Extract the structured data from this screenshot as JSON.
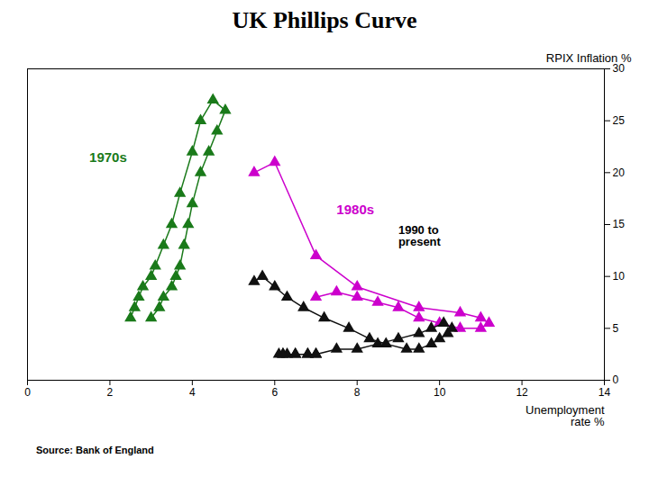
{
  "chart_data": {
    "type": "line",
    "title": "UK Phillips Curve",
    "xlabel": "Unemployment\nrate %",
    "ylabel": "RPIX Inflation %",
    "source": "Source: Bank of England",
    "xlim": [
      0,
      14
    ],
    "ylim": [
      0,
      30
    ],
    "xticks": [
      0,
      2,
      4,
      6,
      8,
      10,
      12,
      14
    ],
    "yticks": [
      0,
      5,
      10,
      15,
      20,
      25,
      30
    ],
    "grid": false,
    "marker": "triangle",
    "line_style": "solid",
    "series": [
      {
        "color": "#1a7a1a",
        "x": [
          2.5,
          2.6,
          2.7,
          2.8,
          3.0,
          3.1,
          3.3,
          3.5,
          3.7,
          4.0,
          4.2,
          4.5,
          4.8,
          4.6,
          4.4,
          4.2,
          4.0,
          3.9,
          3.8,
          3.7,
          3.6,
          3.5,
          3.3,
          3.2,
          3.0
        ],
        "values": [
          6,
          7,
          8,
          9,
          10,
          11,
          13,
          15,
          18,
          22,
          25,
          27,
          26,
          24,
          22,
          20,
          17,
          15,
          13,
          11,
          10,
          9,
          8,
          7,
          6
        ]
      },
      {
        "color": "#cc00cc",
        "x": [
          5.5,
          6.0,
          7.0,
          8.0,
          9.5,
          10.5,
          11.0,
          11.2,
          11.0,
          10.5,
          10.0,
          9.5,
          9.0,
          8.5,
          8.0,
          7.5,
          7.0
        ],
        "values": [
          20,
          21,
          12,
          9,
          7,
          6.5,
          6,
          5.5,
          5,
          5,
          5.5,
          6,
          7,
          7.5,
          8,
          8.5,
          8
        ]
      },
      {
        "color": "#111111",
        "x": [
          5.5,
          5.7,
          6.0,
          6.3,
          6.7,
          7.2,
          7.8,
          8.3,
          8.7,
          9.2,
          9.5,
          9.8,
          10.0,
          10.2,
          10.3,
          10.1,
          9.8,
          9.5,
          9.0,
          8.5,
          8.0,
          7.5,
          7.0,
          6.8,
          6.5,
          6.3,
          6.2,
          6.1,
          6.2,
          6.5,
          6.8,
          7.0
        ],
        "values": [
          9.5,
          10,
          9,
          8,
          7,
          6,
          5,
          4,
          3.5,
          3,
          3,
          3.5,
          4,
          4.5,
          5,
          5.5,
          5,
          4.5,
          4,
          3.5,
          3,
          3,
          2.5,
          2.5,
          2.5,
          2.5,
          2.5,
          2.5,
          2.5,
          2.5,
          2.5,
          2.5
        ]
      }
    ],
    "annotations": [
      {
        "text": "1970s",
        "x": 1.5,
        "y": 21,
        "color": "#1a7a1a"
      },
      {
        "text": "1980s",
        "x": 7.5,
        "y": 16,
        "color": "#cc00cc"
      },
      {
        "text": "1990 to\npresent",
        "x": 9.0,
        "y": 13,
        "color": "black"
      }
    ]
  }
}
